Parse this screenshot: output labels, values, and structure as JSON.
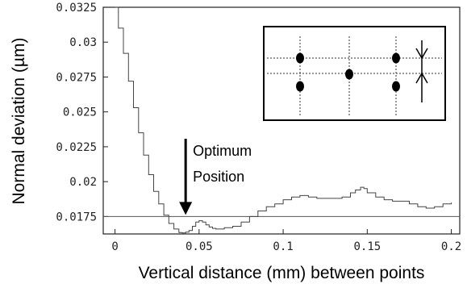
{
  "chart_data": {
    "type": "line",
    "xlabel": "Vertical distance (mm) between points",
    "ylabel": "Normal deviation (µm)",
    "xlim": [
      -0.007,
      0.205
    ],
    "ylim": [
      0.01625,
      0.0325
    ],
    "x_ticks": [
      0,
      0.05,
      0.1,
      0.15,
      0.2
    ],
    "x_tick_labels": [
      "0",
      "0.05",
      "0.1",
      "0.15",
      "0.2"
    ],
    "y_ticks": [
      0.0175,
      0.02,
      0.0225,
      0.025,
      0.0275,
      0.03,
      0.0325
    ],
    "y_tick_labels": [
      "0.0175",
      "0.02",
      "0.0225",
      "0.025",
      "0.0275",
      "0.03",
      "0.0325"
    ],
    "grid": false,
    "series": [
      {
        "x": [
          0,
          0.002,
          0.005,
          0.008,
          0.011,
          0.014,
          0.017,
          0.02,
          0.023,
          0.026,
          0.029,
          0.032,
          0.035,
          0.038,
          0.04,
          0.042,
          0.044,
          0.046,
          0.048,
          0.05,
          0.052,
          0.054,
          0.056,
          0.058,
          0.06,
          0.065,
          0.07,
          0.075,
          0.08,
          0.085,
          0.09,
          0.095,
          0.1,
          0.105,
          0.11,
          0.115,
          0.12,
          0.125,
          0.13,
          0.135,
          0.14,
          0.143,
          0.146,
          0.148,
          0.15,
          0.155,
          0.16,
          0.165,
          0.17,
          0.175,
          0.18,
          0.185,
          0.19,
          0.195,
          0.2
        ],
        "y": [
          0.0325,
          0.031,
          0.0292,
          0.0272,
          0.0253,
          0.0235,
          0.0219,
          0.0205,
          0.0193,
          0.0184,
          0.0176,
          0.017,
          0.0166,
          0.01635,
          0.01632,
          0.01638,
          0.0165,
          0.0168,
          0.0171,
          0.0172,
          0.0171,
          0.0169,
          0.01675,
          0.01665,
          0.0166,
          0.0167,
          0.0168,
          0.0171,
          0.0175,
          0.0179,
          0.0182,
          0.0184,
          0.0187,
          0.0189,
          0.019,
          0.0189,
          0.0188,
          0.0188,
          0.0188,
          0.0189,
          0.0192,
          0.0194,
          0.0196,
          0.0195,
          0.0192,
          0.0189,
          0.0187,
          0.0186,
          0.0186,
          0.0184,
          0.0182,
          0.0181,
          0.0182,
          0.0184,
          0.0185
        ]
      }
    ],
    "reference_line_y": 0.0175,
    "annotations": [
      {
        "text_lines": [
          "Optimum",
          "Position"
        ],
        "arrow_to_x": 0.042,
        "arrow_to_y": 0.0175
      }
    ]
  }
}
